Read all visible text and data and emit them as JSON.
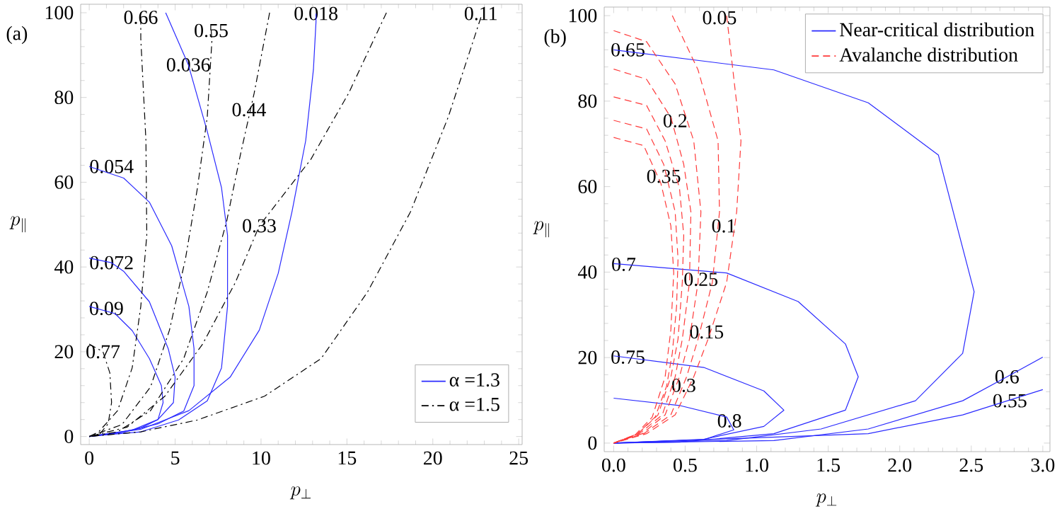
{
  "chart_data": [
    {
      "type": "line",
      "xlabel": "p_{\\perp}",
      "ylabel": "p_{\\parallel}",
      "xlim": [
        -0.5,
        25.2
      ],
      "ylim": [
        -1.9,
        102
      ],
      "xticks": [
        0,
        5,
        10,
        15,
        20,
        25
      ],
      "yticks": [
        0,
        20,
        40,
        60,
        80,
        100
      ],
      "legend": "bottom right",
      "series": [
        {
          "name": "α =1.3",
          "color": "#2a2aff",
          "line_style": "solid",
          "x": [
            0,
            1.5,
            2.5,
            3.5,
            4.2,
            4.3,
            4.0,
            3.0,
            1.5,
            0
          ],
          "values": [
            30.7,
            29,
            25,
            18.4,
            12,
            8,
            4,
            2,
            0.7,
            0
          ]
        },
        {
          "color": "#2a2aff",
          "line_style": "solid",
          "x": [
            0,
            1.3,
            2,
            3.5,
            4.6,
            5,
            4.9,
            4,
            2.5,
            0
          ],
          "values": [
            42.1,
            41,
            39,
            31.8,
            20.7,
            14,
            8,
            4,
            1.5,
            0
          ]
        },
        {
          "color": "#2a2aff",
          "line_style": "solid",
          "x": [
            0,
            2,
            3.5,
            4.8,
            5.8,
            6.1,
            6.1,
            5.5,
            4,
            2,
            0
          ],
          "values": [
            63.7,
            61,
            55.3,
            45,
            30.7,
            20.7,
            12,
            6,
            3,
            1,
            0
          ]
        },
        {
          "color": "#2a2aff",
          "line_style": "solid",
          "x": [
            4.45,
            5.77,
            6.87,
            7.7,
            8.05,
            8.05,
            7.7,
            6.87,
            5.2,
            3,
            1.0,
            0
          ],
          "values": [
            100,
            87.7,
            72,
            58.7,
            47.5,
            30.7,
            16.2,
            8.4,
            3.9,
            1.1,
            0.4,
            0
          ]
        },
        {
          "color": "#2a2aff",
          "line_style": "solid",
          "x": [
            13.2,
            13.2,
            13.05,
            12.6,
            11.8,
            11,
            9.9,
            8.2,
            5.8,
            3,
            0
          ],
          "values": [
            99.8,
            97.8,
            86.6,
            69.8,
            53,
            38.5,
            25.1,
            14,
            6.1,
            1.7,
            0
          ]
        },
        {
          "name": "α =1.5",
          "color": "#000000",
          "line_style": "dashdot",
          "x": [
            0,
            0.8,
            1.2,
            1.3,
            1.1,
            0.6,
            0
          ],
          "values": [
            21.8,
            20,
            15,
            8,
            3,
            0.5,
            0
          ]
        },
        {
          "color": "#000000",
          "line_style": "dashdot",
          "x": [
            3.0,
            3.0,
            3.3,
            3.35,
            3.0,
            2.5,
            1.65,
            0.55,
            0
          ],
          "values": [
            98.9,
            93.9,
            69.8,
            47.5,
            30.7,
            16.2,
            6.1,
            1.1,
            0
          ]
        },
        {
          "color": "#000000",
          "line_style": "dashdot",
          "x": [
            7.1,
            7.14,
            6.87,
            6.3,
            5.6,
            4.67,
            3.57,
            1.9,
            0
          ],
          "values": [
            95.8,
            93.3,
            75.4,
            58.7,
            41.9,
            25.1,
            11.7,
            2.8,
            0
          ]
        },
        {
          "color": "#000000",
          "line_style": "dashdot",
          "x": [
            10.5,
            9.6,
            8.8,
            8.0,
            6.87,
            5.5,
            3.57,
            1.65,
            0
          ],
          "values": [
            100,
            81,
            66.5,
            50.8,
            34.1,
            18.4,
            6.1,
            1.1,
            0
          ]
        },
        {
          "color": "#000000",
          "line_style": "dashdot",
          "x": [
            17.3,
            15.1,
            12.9,
            9.9,
            8.5,
            6.6,
            4.4,
            2.2,
            0
          ],
          "values": [
            100,
            81,
            65.4,
            49.7,
            36.3,
            21.8,
            9.5,
            2.2,
            0
          ]
        },
        {
          "color": "#000000",
          "line_style": "dashdot",
          "x": [
            22.8,
            20.9,
            18.7,
            16.2,
            13.5,
            10.2,
            6.3,
            3,
            0
          ],
          "values": [
            98.9,
            75.4,
            53,
            34.1,
            18.4,
            9.5,
            3.9,
            1.1,
            0
          ]
        }
      ],
      "annotations": [
        "(a)",
        {
          "text": "0.66",
          "x": 3.0,
          "y": 98.9
        },
        {
          "text": "0.55",
          "x": 7.1,
          "y": 95.8
        },
        {
          "text": "0.018",
          "x": 13.2,
          "y": 99.8
        },
        {
          "text": "0.11",
          "x": 22.8,
          "y": 99.8
        },
        {
          "text": "0.44",
          "x": 9.3,
          "y": 77.1
        },
        {
          "text": "0.054",
          "x": 1.3,
          "y": 63.7
        },
        {
          "text": "0.33",
          "x": 9.9,
          "y": 49.7
        },
        {
          "text": "0.072",
          "x": 1.3,
          "y": 41
        },
        {
          "text": "0.09",
          "x": 1.0,
          "y": 30.2
        },
        {
          "text": "0.77",
          "x": 0.8,
          "y": 20
        },
        {
          "text": "0.036",
          "x": 5.77,
          "y": 87.7
        }
      ]
    },
    {
      "type": "line",
      "xlabel": "p_{\\perp}",
      "ylabel": "p_{\\parallel}",
      "xlim": [
        -0.066,
        3.05
      ],
      "ylim": [
        -2,
        102
      ],
      "xticks": [
        {
          "value": 0,
          "label": "0.0"
        },
        {
          "value": 0.5,
          "label": "0.5"
        },
        {
          "value": 1,
          "label": "1.0"
        },
        {
          "value": 1.5,
          "label": "1.5"
        },
        {
          "value": 2,
          "label": "2.0"
        },
        {
          "value": 2.5,
          "label": "2.5"
        },
        {
          "value": 3,
          "label": "3.0"
        }
      ],
      "yticks": [
        0,
        20,
        40,
        60,
        80,
        100
      ],
      "legend": "top right",
      "series": [
        {
          "name": "Near-critical distribution",
          "color": "#2a2aff",
          "line_style": "solid",
          "x": [
            0,
            1.12,
            1.78,
            2.27,
            2.52,
            2.44,
            2.11,
            1.45,
            0.79,
            0
          ],
          "values": [
            92,
            87.3,
            79.6,
            67.4,
            35.4,
            21,
            9.9,
            3.3,
            0.6,
            0
          ]
        },
        {
          "color": "#2a2aff",
          "line_style": "solid",
          "x": [
            0,
            0.79,
            1.29,
            1.62,
            1.71,
            1.62,
            1.12,
            0.46,
            0
          ],
          "values": [
            42,
            39.8,
            33.1,
            23.2,
            15.5,
            7.7,
            2.2,
            0.2,
            0
          ]
        },
        {
          "color": "#2a2aff",
          "line_style": "solid",
          "x": [
            0,
            0.63,
            1.05,
            1.19,
            1.05,
            0.63,
            0
          ],
          "values": [
            20.4,
            17.7,
            12.2,
            7.7,
            3.9,
            0.9,
            0
          ]
        },
        {
          "color": "#2a2aff",
          "line_style": "solid",
          "x": [
            0,
            0.46,
            0.79,
            0.84,
            0.63,
            0
          ],
          "values": [
            10.5,
            8.8,
            6.1,
            3.1,
            0.8,
            0
          ]
        },
        {
          "color": "#2a2aff",
          "line_style": "solid",
          "x": [
            0,
            1.12,
            1.78,
            2.44,
            2.75,
            3.0
          ],
          "values": [
            0,
            0.6,
            3.3,
            9.9,
            15.5,
            20.1
          ]
        },
        {
          "color": "#2a2aff",
          "line_style": "solid",
          "x": [
            0,
            1.78,
            2.44,
            3.0
          ],
          "values": [
            0,
            2.2,
            6.6,
            12.5
          ]
        },
        {
          "name": "Avalanche distribution",
          "color": "#ff3a3a",
          "line_style": "dashed",
          "x": [
            0.79,
            0.89,
            0.86,
            0.79,
            0.66,
            0.56,
            0.43,
            0.23,
            0
          ],
          "values": [
            100,
            70.7,
            54.1,
            37.6,
            24.3,
            15.5,
            6.6,
            2.2,
            0
          ]
        },
        {
          "color": "#ff3a3a",
          "line_style": "dashed",
          "x": [
            0.41,
            0.59,
            0.73,
            0.74,
            0.69,
            0.59,
            0.51,
            0.4,
            0.21,
            0
          ],
          "values": [
            100,
            87.3,
            70.7,
            54.1,
            37.6,
            24.3,
            15.5,
            6.6,
            2.2,
            0
          ]
        },
        {
          "color": "#ff3a3a",
          "line_style": "dashed",
          "x": [
            0,
            0.23,
            0.43,
            0.56,
            0.61,
            0.59,
            0.53,
            0.46,
            0.36,
            0.2,
            0
          ],
          "values": [
            96.5,
            93.9,
            84,
            70.7,
            54.1,
            37.6,
            24.3,
            15.5,
            6.6,
            2.2,
            0
          ]
        },
        {
          "color": "#ff3a3a",
          "line_style": "dashed",
          "x": [
            0,
            0.23,
            0.4,
            0.49,
            0.54,
            0.53,
            0.48,
            0.43,
            0.34,
            0.18,
            0
          ],
          "values": [
            87.5,
            85.1,
            76.2,
            65.2,
            54.1,
            37.6,
            24.3,
            15.5,
            6.6,
            2.2,
            0
          ]
        },
        {
          "color": "#ff3a3a",
          "line_style": "dashed",
          "x": [
            0,
            0.23,
            0.36,
            0.46,
            0.49,
            0.48,
            0.45,
            0.4,
            0.31,
            0.17,
            0
          ],
          "values": [
            81,
            79,
            70.7,
            59.7,
            48.6,
            37.6,
            24.3,
            15.5,
            6.6,
            2.2,
            0
          ]
        },
        {
          "color": "#ff3a3a",
          "line_style": "dashed",
          "x": [
            0,
            0.23,
            0.35,
            0.43,
            0.45,
            0.44,
            0.41,
            0.37,
            0.29,
            0.16,
            0
          ],
          "values": [
            75.5,
            73.5,
            65.2,
            54.1,
            43.1,
            32,
            21,
            13.3,
            6.1,
            2,
            0
          ]
        },
        {
          "color": "#ff3a3a",
          "line_style": "dashed",
          "x": [
            0,
            0.21,
            0.33,
            0.4,
            0.42,
            0.4,
            0.36,
            0.27,
            0.15,
            0
          ],
          "values": [
            71.5,
            69.6,
            60.8,
            50.8,
            39.8,
            26.5,
            15.5,
            6.1,
            1.9,
            0
          ]
        }
      ],
      "annotations": [
        "(b)",
        {
          "text": "0.05",
          "x": 0.74,
          "y": 99.5
        },
        {
          "text": "0.65",
          "x": 0.1,
          "y": 92
        },
        {
          "text": "0.2",
          "x": 0.43,
          "y": 75.4
        },
        {
          "text": "0.35",
          "x": 0.35,
          "y": 62.4
        },
        {
          "text": "0.1",
          "x": 0.77,
          "y": 50.8
        },
        {
          "text": "0.7",
          "x": 0.07,
          "y": 41.8
        },
        {
          "text": "0.25",
          "x": 0.61,
          "y": 38.3
        },
        {
          "text": "0.15",
          "x": 0.65,
          "y": 26
        },
        {
          "text": "0.75",
          "x": 0.1,
          "y": 20.1
        },
        {
          "text": "0.3",
          "x": 0.49,
          "y": 13.5
        },
        {
          "text": "0.8",
          "x": 0.81,
          "y": 5.2
        },
        {
          "text": "0.6",
          "x": 2.75,
          "y": 15.5
        },
        {
          "text": "0.55",
          "x": 2.77,
          "y": 9.9
        }
      ]
    }
  ]
}
